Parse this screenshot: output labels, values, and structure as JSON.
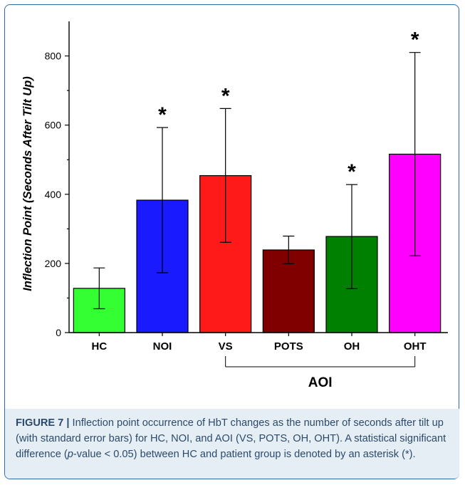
{
  "chart_data": {
    "type": "bar",
    "categories": [
      "HC",
      "NOI",
      "VS",
      "POTS",
      "OH",
      "OHT"
    ],
    "values": [
      128,
      383,
      454,
      239,
      278,
      516
    ],
    "error_low": [
      69,
      173,
      261,
      199,
      127,
      222
    ],
    "error_high": [
      187,
      593,
      648,
      279,
      428,
      810
    ],
    "significant": [
      false,
      true,
      true,
      false,
      true,
      true
    ],
    "significance_marker": "*",
    "colors": [
      "#33ff33",
      "#1a1aff",
      "#ff1a1a",
      "#800000",
      "#008000",
      "#ff00ff"
    ],
    "ylabel": "Inflection Point (Seconds After Tilt Up)",
    "xlabel": "",
    "ylim": [
      0,
      900
    ],
    "yticks": [
      "0",
      "200",
      "400",
      "600",
      "800"
    ],
    "group_bracket": {
      "label": "AOI",
      "from": "VS",
      "to": "OHT"
    }
  },
  "caption": {
    "label": "FIGURE 7",
    "separator": "|",
    "part1": "Inflection point occurrence of HbT changes as the number of seconds after tilt up (with standard error bars) for HC, NOI, and AOI (VS, POTS, OH, OHT). A statistical significant difference (",
    "p_italic": "p",
    "part2": "-value < 0.05) between HC and patient group is denoted by an asterisk (*)."
  }
}
